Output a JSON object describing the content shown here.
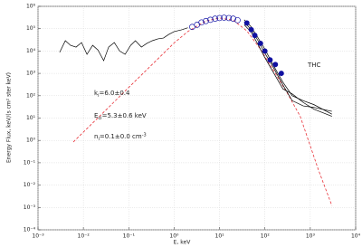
{
  "chart_data": {
    "type": "line",
    "log_x": true,
    "log_y": true,
    "grid": true,
    "x_label": "E, keV",
    "y_label": "Energy Flux, keV/(s cm² ster keV)",
    "xlim": [
      0.001,
      10000
    ],
    "ylim": [
      0.0001,
      1000000
    ],
    "xticks": [
      {
        "value": 0.001,
        "label": "10⁻³"
      },
      {
        "value": 0.01,
        "label": "10⁻²"
      },
      {
        "value": 0.1,
        "label": "10⁻¹"
      },
      {
        "value": 1,
        "label": "10⁰"
      },
      {
        "value": 10,
        "label": "10¹"
      },
      {
        "value": 100,
        "label": "10²"
      },
      {
        "value": 1000,
        "label": "10³"
      },
      {
        "value": 10000,
        "label": "10⁴"
      }
    ],
    "yticks": [
      {
        "value": 0.0001,
        "label": "10⁻⁴"
      },
      {
        "value": 0.001,
        "label": "10⁻³"
      },
      {
        "value": 0.01,
        "label": "10⁻²"
      },
      {
        "value": 0.1,
        "label": "10⁻¹"
      },
      {
        "value": 1,
        "label": "10⁰"
      },
      {
        "value": 10,
        "label": "10¹"
      },
      {
        "value": 100,
        "label": "10²"
      },
      {
        "value": 1000,
        "label": "10³"
      },
      {
        "value": 10000,
        "label": "10⁴"
      },
      {
        "value": 100000,
        "label": "10⁵"
      },
      {
        "value": 1000000,
        "label": "10⁶"
      }
    ],
    "annotations": [
      {
        "text": "THC"
      },
      {
        "text": "k",
        "sub": "i",
        "rest": "=6.0±0.4"
      },
      {
        "text": "E",
        "sub": "ci",
        "rest": "=5.3±0.6 keV"
      },
      {
        "text": "n",
        "sub": "i",
        "rest": "=0.1±0.0 cm",
        "sup": "-3"
      }
    ],
    "series": [
      {
        "color": "#000000",
        "dash": false,
        "marker": "none",
        "x": [
          0.003,
          0.004,
          0.0052,
          0.0069,
          0.0091,
          0.012,
          0.016,
          0.021,
          0.028,
          0.036,
          0.048,
          0.063,
          0.083,
          0.11,
          0.14,
          0.19,
          0.25,
          0.33,
          0.44,
          0.58,
          0.76,
          1.0,
          1.5,
          2.0
        ],
        "values": [
          8700,
          29000,
          18000,
          15000,
          24000,
          7100,
          18000,
          11000,
          3700,
          15000,
          24000,
          10000,
          7100,
          18000,
          29000,
          15000,
          22000,
          29000,
          35000,
          38000,
          55000,
          74000,
          90000,
          110000
        ]
      },
      {
        "color": "#e8333a",
        "dash": true,
        "marker": "none",
        "x": [
          0.006,
          0.03,
          0.1,
          0.3,
          1,
          2,
          5,
          10,
          20,
          40,
          80,
          150,
          300,
          600,
          1500,
          3000
        ],
        "values": [
          0.85,
          21,
          236,
          2100,
          23000,
          75000,
          220000,
          300000,
          240000,
          80000,
          12000,
          1500,
          150,
          12,
          0.05,
          0.0012
        ]
      },
      {
        "color": "#1a1aa8",
        "dash": false,
        "marker": "open",
        "x": [
          2.5,
          3.2,
          4,
          5,
          6.3,
          8,
          10,
          12.6,
          16,
          20,
          25
        ],
        "values": [
          120000,
          150000,
          190000,
          220000,
          250000,
          280000,
          300000,
          310000,
          300000,
          280000,
          240000
        ]
      },
      {
        "color": "#000000",
        "dash": false,
        "marker": "none",
        "x": [
          35,
          50,
          70,
          100,
          150,
          250,
          400,
          700,
          1200,
          3000
        ],
        "values": [
          250000,
          120000,
          40000,
          12000,
          2500,
          400,
          100,
          60,
          40,
          15
        ]
      },
      {
        "color": "#000000",
        "dash": false,
        "marker": "none",
        "x": [
          35,
          50,
          70,
          100,
          150,
          250,
          400,
          700,
          1200,
          3000
        ],
        "values": [
          200000,
          90000,
          30000,
          8000,
          2000,
          300,
          60,
          35,
          30,
          20
        ]
      },
      {
        "color": "#000000",
        "dash": false,
        "marker": "none",
        "x": [
          35,
          50,
          70,
          100,
          150,
          250,
          400,
          700,
          1200,
          3000
        ],
        "values": [
          150000,
          70000,
          20000,
          5000,
          1200,
          200,
          120,
          50,
          25,
          12
        ]
      },
      {
        "color": "#1010a0",
        "dash": false,
        "marker": "filled",
        "x": [
          40,
          50,
          60,
          80,
          100,
          130,
          170,
          230
        ],
        "values": [
          180000,
          90000,
          50000,
          22000,
          10000,
          4000,
          2500,
          1000
        ]
      }
    ]
  }
}
